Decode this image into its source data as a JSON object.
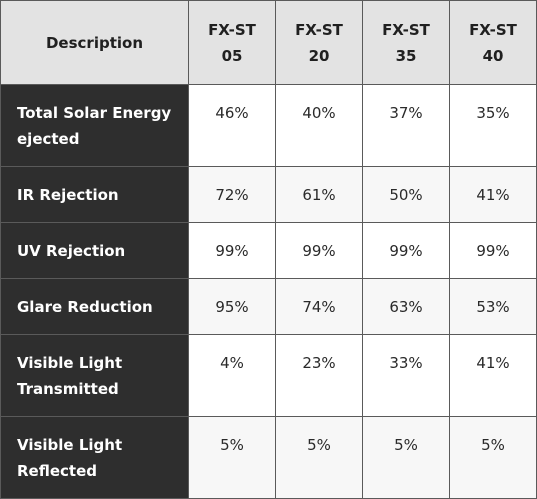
{
  "table": {
    "header": {
      "description": "Description",
      "models": [
        "FX-ST 05",
        "FX-ST 20",
        "FX-ST 35",
        "FX-ST 40"
      ]
    },
    "rows": [
      {
        "label": "Total Solar Energy ejected",
        "values": [
          "46%",
          "40%",
          "37%",
          "35%"
        ]
      },
      {
        "label": "IR Rejection",
        "values": [
          "72%",
          "61%",
          "50%",
          "41%"
        ]
      },
      {
        "label": "UV Rejection",
        "values": [
          "99%",
          "99%",
          "99%",
          "99%"
        ]
      },
      {
        "label": "Glare Reduction",
        "values": [
          "95%",
          "74%",
          "63%",
          "53%"
        ]
      },
      {
        "label": "Visible Light Transmitted",
        "values": [
          "4%",
          "23%",
          "33%",
          "41%"
        ]
      },
      {
        "label": "Visible Light Reflected",
        "values": [
          "5%",
          "5%",
          "5%",
          "5%"
        ]
      }
    ]
  }
}
